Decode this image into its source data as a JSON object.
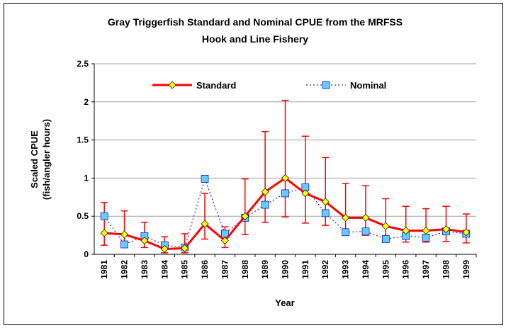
{
  "chart_data": {
    "type": "line",
    "title": [
      "Gray Triggerfish Standard and Nominal CPUE from the MRFSS",
      "Hook and Line Fishery"
    ],
    "xlabel": "Year",
    "ylabel": [
      "Scaled CPUE",
      "(fish/angler hours)"
    ],
    "categories": [
      "1981",
      "1982",
      "1983",
      "1984",
      "1985",
      "1986",
      "1987",
      "1988",
      "1989",
      "1990",
      "1991",
      "1992",
      "1993",
      "1994",
      "1995",
      "1996",
      "1997",
      "1998",
      "1999"
    ],
    "ylim": [
      0,
      2.5
    ],
    "yticks": [
      0,
      0.5,
      1,
      1.5,
      2,
      2.5
    ],
    "grid": true,
    "legend": "top",
    "series": [
      {
        "name": "Standard",
        "color": "#ff0000",
        "marker_color": "#ffff00",
        "values": [
          0.28,
          0.26,
          0.18,
          0.07,
          0.08,
          0.4,
          0.18,
          0.5,
          0.82,
          1.0,
          0.8,
          0.69,
          0.48,
          0.48,
          0.37,
          0.31,
          0.31,
          0.33,
          0.29
        ],
        "lower": [
          0.12,
          0.13,
          0.09,
          0.02,
          0.02,
          0.2,
          0.09,
          0.26,
          0.42,
          0.49,
          0.41,
          0.38,
          0.25,
          0.25,
          0.19,
          0.16,
          0.16,
          0.17,
          0.15
        ],
        "upper": [
          0.68,
          0.57,
          0.42,
          0.23,
          0.27,
          0.8,
          0.36,
          0.99,
          1.61,
          2.02,
          1.55,
          1.27,
          0.93,
          0.9,
          0.73,
          0.63,
          0.6,
          0.63,
          0.53
        ]
      },
      {
        "name": "Nominal",
        "color": "#0000cc",
        "marker_color": "#66ccff",
        "values": [
          0.5,
          0.13,
          0.24,
          0.12,
          0.09,
          0.99,
          0.27,
          0.48,
          0.65,
          0.8,
          0.88,
          0.54,
          0.29,
          0.3,
          0.2,
          0.24,
          0.22,
          0.3,
          0.27
        ]
      }
    ]
  }
}
